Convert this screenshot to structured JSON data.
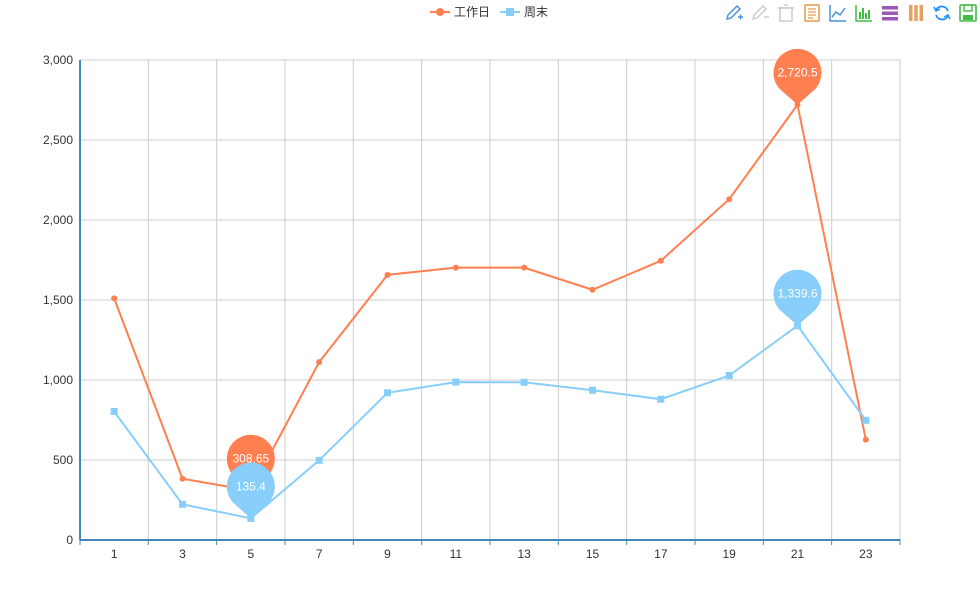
{
  "legend": {
    "items": [
      {
        "label": "工作日",
        "color": "#ff7f50",
        "marker": "circle"
      },
      {
        "label": "周末",
        "color": "#87cefa",
        "marker": "square"
      }
    ]
  },
  "toolbox": {
    "icons": [
      {
        "name": "mark-icon",
        "color": "#4a90d9"
      },
      {
        "name": "mark-undo-icon",
        "color": "#cccccc"
      },
      {
        "name": "mark-clear-icon",
        "color": "#cccccc"
      },
      {
        "name": "data-view-icon",
        "color": "#e89c4a"
      },
      {
        "name": "line-chart-icon",
        "color": "#4a90d9"
      },
      {
        "name": "bar-chart-icon",
        "color": "#44bb44"
      },
      {
        "name": "stack-icon",
        "color": "#9b59b6"
      },
      {
        "name": "tiled-icon",
        "color": "#e8a060"
      },
      {
        "name": "restore-icon",
        "color": "#1e90ff"
      },
      {
        "name": "save-image-icon",
        "color": "#44bb44"
      }
    ]
  },
  "chart_data": {
    "type": "line",
    "x": [
      "1",
      "3",
      "5",
      "7",
      "9",
      "11",
      "13",
      "15",
      "17",
      "19",
      "21",
      "23"
    ],
    "ylim": [
      0,
      3000
    ],
    "yticks": [
      "0",
      "500",
      "1,000",
      "1,500",
      "2,000",
      "2,500",
      "3,000"
    ],
    "ytick_values": [
      0,
      500,
      1000,
      1500,
      2000,
      2500,
      3000
    ],
    "grid": true,
    "legend_position": "top-center",
    "series": [
      {
        "name": "工作日",
        "color": "#ff7f50",
        "marker": "circle",
        "values": [
          1510,
          383,
          308.65,
          1112,
          1657,
          1702,
          1702,
          1564,
          1745,
          2130,
          2720.5,
          627
        ],
        "mark_points": [
          {
            "index": 2,
            "label": "308.65"
          },
          {
            "index": 10,
            "label": "2,720.5"
          }
        ]
      },
      {
        "name": "周末",
        "color": "#87cefa",
        "marker": "square",
        "values": [
          803,
          223,
          135.4,
          498,
          920,
          987,
          986,
          936,
          880,
          1028,
          1339.6,
          748
        ],
        "mark_points": [
          {
            "index": 2,
            "label": "135.4"
          },
          {
            "index": 10,
            "label": "1,339.6"
          }
        ]
      }
    ]
  }
}
